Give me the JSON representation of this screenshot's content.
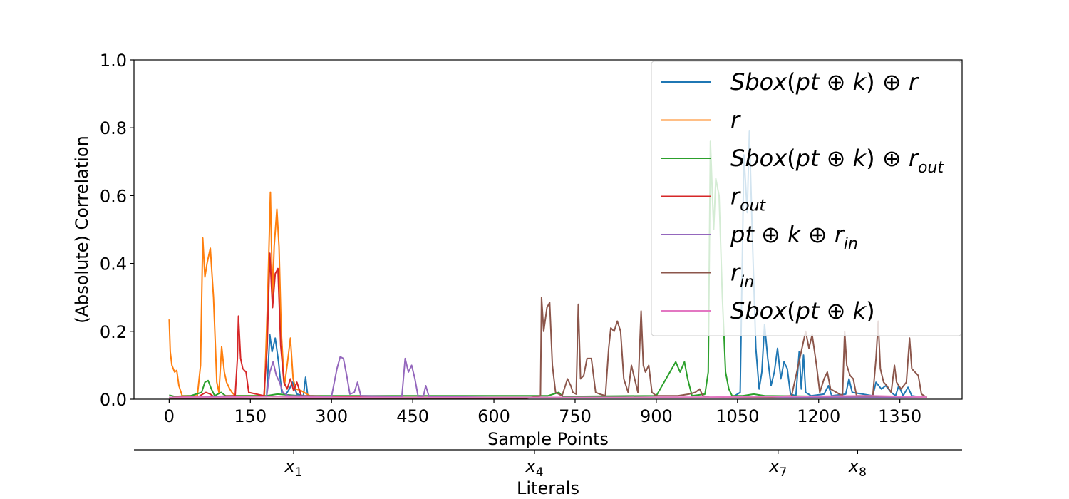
{
  "chart_data": {
    "type": "line",
    "xlabel": "Sample Points",
    "ylabel": "(Absolute) Correlation",
    "xlim": [
      -65,
      1465
    ],
    "ylim": [
      0,
      1
    ],
    "xticks": [
      0,
      150,
      300,
      450,
      600,
      750,
      900,
      1050,
      1200,
      1350
    ],
    "yticks": [
      0.0,
      0.2,
      0.4,
      0.6,
      0.8,
      1.0
    ],
    "grid": false,
    "legend_position": "top-right",
    "secondary_axis": {
      "label": "Literals",
      "ticks": [
        {
          "position": 230,
          "base": "x",
          "sub": "1"
        },
        {
          "position": 675,
          "base": "x",
          "sub": "4"
        },
        {
          "position": 1125,
          "base": "x",
          "sub": "7"
        },
        {
          "position": 1272,
          "base": "x",
          "sub": "8"
        }
      ]
    },
    "series": [
      {
        "name": "Sbox(pt ⊕ k) ⊕ r",
        "color": "#1f77b4",
        "points": [
          [
            0,
            0.005
          ],
          [
            180,
            0.008
          ],
          [
            186,
            0.19
          ],
          [
            190,
            0.14
          ],
          [
            196,
            0.18
          ],
          [
            202,
            0.11
          ],
          [
            208,
            0.02
          ],
          [
            216,
            0.015
          ],
          [
            222,
            0.03
          ],
          [
            228,
            0.05
          ],
          [
            236,
            0.015
          ],
          [
            248,
            0.01
          ],
          [
            252,
            0.065
          ],
          [
            256,
            0.01
          ],
          [
            400,
            0.005
          ],
          [
            1040,
            0.005
          ],
          [
            1055,
            0.02
          ],
          [
            1062,
            0.72
          ],
          [
            1068,
            0.55
          ],
          [
            1072,
            0.79
          ],
          [
            1078,
            0.45
          ],
          [
            1084,
            0.15
          ],
          [
            1090,
            0.03
          ],
          [
            1095,
            0.08
          ],
          [
            1100,
            0.22
          ],
          [
            1106,
            0.12
          ],
          [
            1112,
            0.04
          ],
          [
            1118,
            0.08
          ],
          [
            1124,
            0.15
          ],
          [
            1130,
            0.06
          ],
          [
            1136,
            0.11
          ],
          [
            1142,
            0.09
          ],
          [
            1148,
            0.015
          ],
          [
            1158,
            0.01
          ],
          [
            1164,
            0.14
          ],
          [
            1168,
            0.03
          ],
          [
            1172,
            0.13
          ],
          [
            1176,
            0.02
          ],
          [
            1186,
            0.01
          ],
          [
            1210,
            0.015
          ],
          [
            1218,
            0.04
          ],
          [
            1224,
            0.01
          ],
          [
            1250,
            0.015
          ],
          [
            1256,
            0.06
          ],
          [
            1262,
            0.02
          ],
          [
            1300,
            0.01
          ],
          [
            1306,
            0.05
          ],
          [
            1316,
            0.03
          ],
          [
            1324,
            0.04
          ],
          [
            1334,
            0.02
          ],
          [
            1342,
            0.01
          ],
          [
            1348,
            0.04
          ],
          [
            1356,
            0.01
          ],
          [
            1365,
            0.035
          ],
          [
            1372,
            0.01
          ],
          [
            1395,
            0.005
          ]
        ]
      },
      {
        "name": "r",
        "color": "#ff7f0e",
        "points": [
          [
            0,
            0.235
          ],
          [
            2,
            0.14
          ],
          [
            5,
            0.1
          ],
          [
            10,
            0.08
          ],
          [
            14,
            0.085
          ],
          [
            18,
            0.04
          ],
          [
            24,
            0.01
          ],
          [
            52,
            0.01
          ],
          [
            58,
            0.1
          ],
          [
            62,
            0.475
          ],
          [
            66,
            0.36
          ],
          [
            70,
            0.4
          ],
          [
            76,
            0.445
          ],
          [
            82,
            0.3
          ],
          [
            88,
            0.05
          ],
          [
            92,
            0.02
          ],
          [
            97,
            0.155
          ],
          [
            102,
            0.08
          ],
          [
            106,
            0.05
          ],
          [
            112,
            0.03
          ],
          [
            116,
            0.02
          ],
          [
            122,
            0.01
          ],
          [
            176,
            0.01
          ],
          [
            182,
            0.3
          ],
          [
            187,
            0.61
          ],
          [
            191,
            0.3
          ],
          [
            194,
            0.45
          ],
          [
            199,
            0.56
          ],
          [
            203,
            0.45
          ],
          [
            207,
            0.2
          ],
          [
            213,
            0.04
          ],
          [
            218,
            0.1
          ],
          [
            224,
            0.18
          ],
          [
            229,
            0.06
          ],
          [
            234,
            0.03
          ],
          [
            244,
            0.025
          ],
          [
            260,
            0.01
          ],
          [
            300,
            0.008
          ],
          [
            400,
            0.005
          ],
          [
            1400,
            0.005
          ]
        ]
      },
      {
        "name": "Sbox(pt ⊕ k) ⊕ r_out",
        "color": "#2ca02c",
        "points": [
          [
            0,
            0.012
          ],
          [
            10,
            0.008
          ],
          [
            40,
            0.01
          ],
          [
            60,
            0.02
          ],
          [
            66,
            0.05
          ],
          [
            72,
            0.055
          ],
          [
            78,
            0.03
          ],
          [
            84,
            0.01
          ],
          [
            96,
            0.02
          ],
          [
            104,
            0.01
          ],
          [
            180,
            0.01
          ],
          [
            200,
            0.015
          ],
          [
            240,
            0.01
          ],
          [
            300,
            0.01
          ],
          [
            500,
            0.01
          ],
          [
            700,
            0.01
          ],
          [
            720,
            0.02
          ],
          [
            727,
            0.008
          ],
          [
            900,
            0.01
          ],
          [
            936,
            0.11
          ],
          [
            944,
            0.08
          ],
          [
            952,
            0.11
          ],
          [
            958,
            0.06
          ],
          [
            966,
            0.01
          ],
          [
            990,
            0.015
          ],
          [
            996,
            0.08
          ],
          [
            1000,
            0.76
          ],
          [
            1006,
            0.5
          ],
          [
            1010,
            0.65
          ],
          [
            1016,
            0.6
          ],
          [
            1022,
            0.3
          ],
          [
            1028,
            0.08
          ],
          [
            1034,
            0.03
          ],
          [
            1040,
            0.01
          ],
          [
            1060,
            0.01
          ],
          [
            1080,
            0.015
          ],
          [
            1100,
            0.01
          ],
          [
            1400,
            0.005
          ]
        ]
      },
      {
        "name": "r_out",
        "color": "#d62728",
        "points": [
          [
            0,
            0.005
          ],
          [
            55,
            0.008
          ],
          [
            62,
            0.015
          ],
          [
            68,
            0.02
          ],
          [
            76,
            0.015
          ],
          [
            82,
            0.008
          ],
          [
            122,
            0.01
          ],
          [
            126,
            0.12
          ],
          [
            128,
            0.245
          ],
          [
            132,
            0.12
          ],
          [
            136,
            0.09
          ],
          [
            142,
            0.08
          ],
          [
            147,
            0.02
          ],
          [
            175,
            0.01
          ],
          [
            181,
            0.15
          ],
          [
            186,
            0.43
          ],
          [
            191,
            0.27
          ],
          [
            196,
            0.37
          ],
          [
            201,
            0.385
          ],
          [
            206,
            0.16
          ],
          [
            212,
            0.05
          ],
          [
            218,
            0.03
          ],
          [
            224,
            0.06
          ],
          [
            230,
            0.025
          ],
          [
            236,
            0.05
          ],
          [
            244,
            0.01
          ],
          [
            300,
            0.008
          ],
          [
            400,
            0.005
          ],
          [
            1400,
            0.005
          ]
        ]
      },
      {
        "name": "pt ⊕ k ⊕ r_in",
        "color": "#9467bd",
        "points": [
          [
            0,
            0.005
          ],
          [
            180,
            0.008
          ],
          [
            186,
            0.08
          ],
          [
            192,
            0.11
          ],
          [
            198,
            0.07
          ],
          [
            204,
            0.05
          ],
          [
            210,
            0.02
          ],
          [
            220,
            0.01
          ],
          [
            300,
            0.008
          ],
          [
            310,
            0.09
          ],
          [
            316,
            0.125
          ],
          [
            322,
            0.12
          ],
          [
            328,
            0.07
          ],
          [
            334,
            0.015
          ],
          [
            342,
            0.02
          ],
          [
            348,
            0.05
          ],
          [
            354,
            0.01
          ],
          [
            430,
            0.008
          ],
          [
            436,
            0.12
          ],
          [
            442,
            0.08
          ],
          [
            448,
            0.1
          ],
          [
            454,
            0.06
          ],
          [
            460,
            0.008
          ],
          [
            470,
            0.01
          ],
          [
            474,
            0.04
          ],
          [
            480,
            0.008
          ],
          [
            600,
            0.005
          ],
          [
            1400,
            0.005
          ]
        ]
      },
      {
        "name": "r_in",
        "color": "#8c564b",
        "points": [
          [
            0,
            0.002
          ],
          [
            660,
            0.003
          ],
          [
            686,
            0.01
          ],
          [
            688,
            0.3
          ],
          [
            692,
            0.2
          ],
          [
            698,
            0.27
          ],
          [
            703,
            0.285
          ],
          [
            708,
            0.1
          ],
          [
            714,
            0.02
          ],
          [
            726,
            0.01
          ],
          [
            732,
            0.04
          ],
          [
            736,
            0.06
          ],
          [
            742,
            0.04
          ],
          [
            746,
            0.02
          ],
          [
            752,
            0.015
          ],
          [
            756,
            0.28
          ],
          [
            760,
            0.06
          ],
          [
            766,
            0.07
          ],
          [
            772,
            0.12
          ],
          [
            780,
            0.12
          ],
          [
            788,
            0.02
          ],
          [
            796,
            0.015
          ],
          [
            806,
            0.01
          ],
          [
            812,
            0.15
          ],
          [
            816,
            0.21
          ],
          [
            822,
            0.2
          ],
          [
            828,
            0.23
          ],
          [
            834,
            0.2
          ],
          [
            840,
            0.06
          ],
          [
            848,
            0.02
          ],
          [
            854,
            0.1
          ],
          [
            860,
            0.06
          ],
          [
            866,
            0.02
          ],
          [
            872,
            0.26
          ],
          [
            876,
            0.1
          ],
          [
            880,
            0.08
          ],
          [
            886,
            0.1
          ],
          [
            892,
            0.02
          ],
          [
            900,
            0.01
          ],
          [
            940,
            0.01
          ],
          [
            960,
            0.015
          ],
          [
            972,
            0.02
          ],
          [
            980,
            0.03
          ],
          [
            986,
            0.01
          ],
          [
            1000,
            0.005
          ],
          [
            1100,
            0.005
          ],
          [
            1150,
            0.01
          ],
          [
            1176,
            0.2
          ],
          [
            1182,
            0.15
          ],
          [
            1188,
            0.19
          ],
          [
            1196,
            0.1
          ],
          [
            1202,
            0.02
          ],
          [
            1210,
            0.06
          ],
          [
            1216,
            0.08
          ],
          [
            1222,
            0.03
          ],
          [
            1244,
            0.01
          ],
          [
            1248,
            0.2
          ],
          [
            1252,
            0.1
          ],
          [
            1258,
            0.07
          ],
          [
            1264,
            0.06
          ],
          [
            1270,
            0.01
          ],
          [
            1300,
            0.01
          ],
          [
            1306,
            0.12
          ],
          [
            1310,
            0.23
          ],
          [
            1314,
            0.09
          ],
          [
            1320,
            0.05
          ],
          [
            1326,
            0.04
          ],
          [
            1334,
            0.02
          ],
          [
            1340,
            0.1
          ],
          [
            1344,
            0.05
          ],
          [
            1352,
            0.03
          ],
          [
            1362,
            0.05
          ],
          [
            1368,
            0.18
          ],
          [
            1372,
            0.09
          ],
          [
            1378,
            0.08
          ],
          [
            1384,
            0.07
          ],
          [
            1390,
            0.015
          ],
          [
            1400,
            0.005
          ]
        ]
      },
      {
        "name": "Sbox(pt ⊕ k)",
        "color": "#e377c2",
        "points": [
          [
            0,
            0.005
          ],
          [
            60,
            0.006
          ],
          [
            80,
            0.005
          ],
          [
            200,
            0.008
          ],
          [
            230,
            0.006
          ],
          [
            400,
            0.005
          ],
          [
            800,
            0.005
          ],
          [
            1000,
            0.006
          ],
          [
            1300,
            0.01
          ],
          [
            1400,
            0.006
          ]
        ]
      }
    ],
    "legend_entries": [
      [
        {
          "t": "Sbox"
        },
        {
          "t": "(",
          "u": 1
        },
        {
          "t": "pt"
        },
        {
          "t": " ⊕ ",
          "u": 1
        },
        {
          "t": "k"
        },
        {
          "t": ") ⊕ ",
          "u": 1
        },
        {
          "t": "r"
        }
      ],
      [
        {
          "t": "r"
        }
      ],
      [
        {
          "t": "Sbox"
        },
        {
          "t": "(",
          "u": 1
        },
        {
          "t": "pt"
        },
        {
          "t": " ⊕ ",
          "u": 1
        },
        {
          "t": "k"
        },
        {
          "t": ") ⊕ ",
          "u": 1
        },
        {
          "t": "r"
        },
        {
          "t": "out",
          "s": 1
        }
      ],
      [
        {
          "t": "r"
        },
        {
          "t": "out",
          "s": 1
        }
      ],
      [
        {
          "t": "pt"
        },
        {
          "t": " ⊕ ",
          "u": 1
        },
        {
          "t": "k"
        },
        {
          "t": " ⊕ ",
          "u": 1
        },
        {
          "t": "r"
        },
        {
          "t": "in",
          "s": 1
        }
      ],
      [
        {
          "t": "r"
        },
        {
          "t": "in",
          "s": 1
        }
      ],
      [
        {
          "t": "Sbox"
        },
        {
          "t": "(",
          "u": 1
        },
        {
          "t": "pt"
        },
        {
          "t": " ⊕ ",
          "u": 1
        },
        {
          "t": "k"
        },
        {
          "t": ")",
          "u": 1
        }
      ]
    ]
  }
}
